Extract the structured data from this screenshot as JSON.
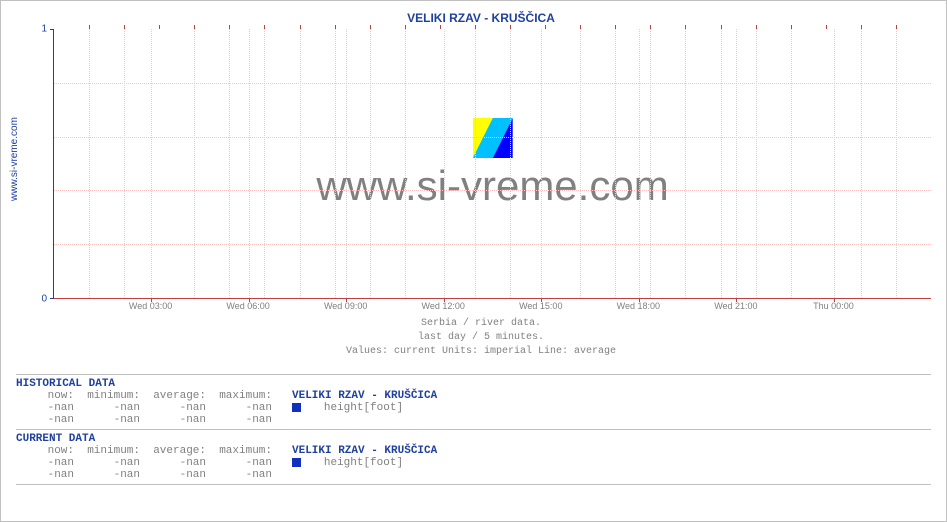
{
  "site_label": "www.si-vreme.com",
  "chart": {
    "title": "VELIKI RZAV -  KRUŠČICA",
    "subtitle1": "Serbia / river data.",
    "subtitle2": "last day / 5 minutes.",
    "subtitle3": "Values: current  Units: imperial  Line: average",
    "ylim": [
      0,
      1
    ],
    "yticks": [
      0,
      1
    ],
    "xticks": [
      "Wed 03:00",
      "Wed 06:00",
      "Wed 09:00",
      "Wed 12:00",
      "Wed 15:00",
      "Wed 18:00",
      "Wed 21:00",
      "Thu 00:00"
    ],
    "grid_color": "#ffc0c0",
    "axis_y_color": "#2040a0",
    "axis_x_color": "#c04040",
    "minor_v_count": 24,
    "minor_h_count": 4,
    "watermark_text": "www.si-vreme.com",
    "watermark_colors": {
      "y": "#ffff00",
      "c": "#00c0ff",
      "b": "#0000ff"
    }
  },
  "historical": {
    "header": "HISTORICAL DATA",
    "cols": [
      "now:",
      "minimum:",
      "average:",
      "maximum:"
    ],
    "series_name": "VELIKI RZAV -  KRUŠČICA",
    "rows": [
      {
        "vals": [
          "-nan",
          "-nan",
          "-nan",
          "-nan"
        ],
        "swatch": "#1030c0",
        "metric": "height[foot]"
      },
      {
        "vals": [
          "-nan",
          "-nan",
          "-nan",
          "-nan"
        ],
        "swatch": null,
        "metric": ""
      }
    ]
  },
  "current": {
    "header": "CURRENT DATA",
    "cols": [
      "now:",
      "minimum:",
      "average:",
      "maximum:"
    ],
    "series_name": "VELIKI RZAV -  KRUŠČICA",
    "rows": [
      {
        "vals": [
          "-nan",
          "-nan",
          "-nan",
          "-nan"
        ],
        "swatch": "#1030c0",
        "metric": "height[foot]"
      },
      {
        "vals": [
          "-nan",
          "-nan",
          "-nan",
          "-nan"
        ],
        "swatch": null,
        "metric": ""
      }
    ]
  }
}
